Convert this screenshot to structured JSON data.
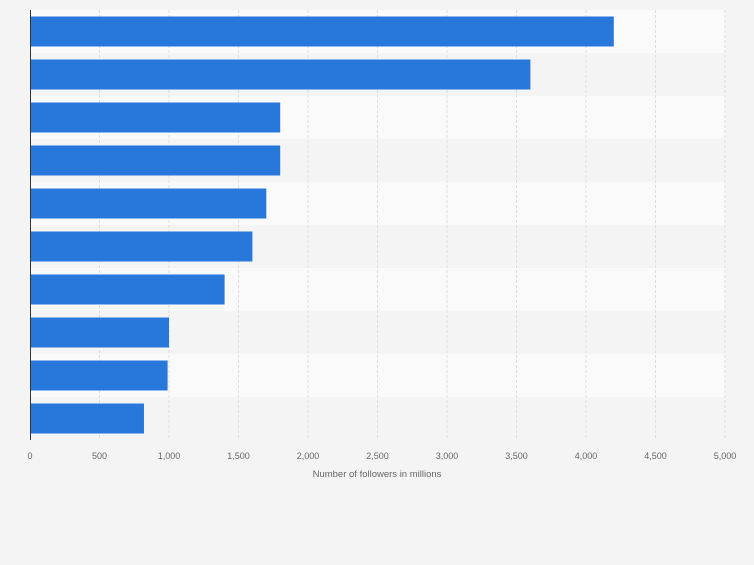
{
  "chart_data": {
    "type": "bar",
    "orientation": "horizontal",
    "title": "",
    "xlabel": "Number of followers in millions",
    "ylabel": "",
    "categories": [
      "",
      "",
      "",
      "",
      "",
      "",
      "",
      "",
      "",
      ""
    ],
    "values": [
      4200,
      3600,
      1800,
      1800,
      1700,
      1600,
      1400,
      1000,
      990,
      820
    ],
    "xlim": [
      0,
      5000
    ],
    "x_ticks": [
      0,
      500,
      1000,
      1500,
      2000,
      2500,
      3000,
      3500,
      4000,
      4500,
      5000
    ],
    "x_tick_labels": [
      "0",
      "500",
      "1,000",
      "1,500",
      "2,000",
      "2,500",
      "3,000",
      "3,500",
      "4,000",
      "4,500",
      "5,000"
    ],
    "grid": true,
    "legend": "none",
    "colors": {
      "bar": "#2878dc",
      "band_light": "#fafafa",
      "band_dark": "#f4f4f4",
      "grid": "#dedede",
      "axis": "#333333",
      "page_background": "#f4f4f4"
    }
  }
}
